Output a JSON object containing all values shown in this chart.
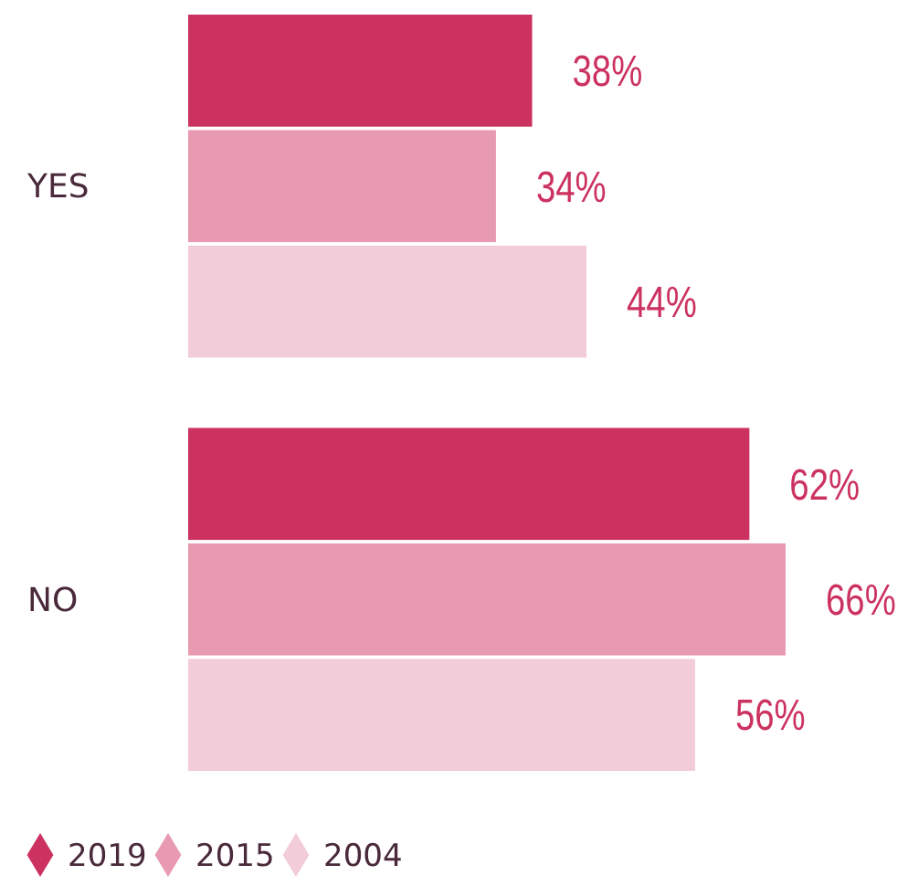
{
  "chart_data": {
    "type": "bar",
    "orientation": "horizontal",
    "categories": [
      "YES",
      "NO"
    ],
    "series": [
      {
        "name": "2019",
        "color": "#cc3260",
        "values": [
          38,
          62
        ],
        "value_labels": [
          "38%",
          "62%"
        ]
      },
      {
        "name": "2015",
        "color": "#e79ab0",
        "values": [
          34,
          66
        ],
        "value_labels": [
          "34%",
          "66%"
        ]
      },
      {
        "name": "2004",
        "color": "#f2ccd8",
        "values": [
          44,
          56
        ],
        "value_labels": [
          "44%",
          "56%"
        ]
      }
    ],
    "legend": "bottom left",
    "marker": "diamond"
  }
}
